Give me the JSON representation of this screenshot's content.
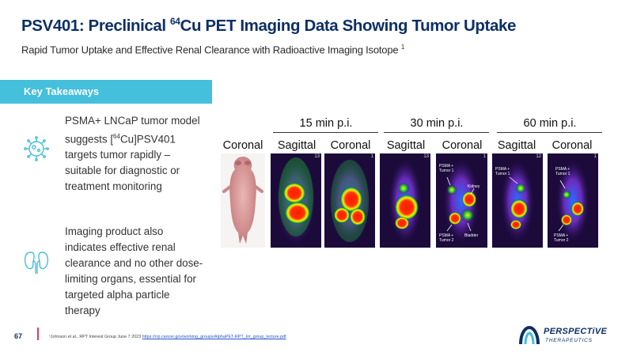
{
  "header": {
    "title_prefix": "PSV401: Preclinical ",
    "title_sup": "64",
    "title_suffix": "Cu PET Imaging Data Showing Tumor Uptake",
    "subtitle": "Rapid Tumor Uptake and Effective Renal Clearance with Radioactive Imaging Isotope",
    "subtitle_sup": "1"
  },
  "takeaways": {
    "heading": "Key Takeaways",
    "item1": {
      "line1": "PSMA+ LNCaP tumor model suggests [",
      "sup": "64",
      "line2": "Cu]PSV401 targets tumor rapidly – suitable for diagnostic or treatment monitoring",
      "icon": "cell-icon"
    },
    "item2": {
      "text": "Imaging product also indicates effective renal clearance and no other dose-limiting organs, essential for targeted alpha particle therapy",
      "icon": "kidneys-icon"
    }
  },
  "figure": {
    "groups": [
      "15 min p.i.",
      "30 min p.i.",
      "60 min p.i."
    ],
    "columns": [
      "Coronal",
      "Sagittal",
      "Coronal",
      "Sagittal",
      "Coronal",
      "Sagittal",
      "Coronal"
    ],
    "panel_numbers": [
      "13",
      "1",
      "13",
      "1",
      "12",
      "1"
    ],
    "annotations": {
      "psma_tumor1": "PSMA + Tumor 1",
      "psma_tumor2": "PSMA + Tumor 2",
      "kidney": "Kidney",
      "bladder": "Bladder"
    }
  },
  "footer": {
    "page_number": "67",
    "reference_prefix": "¹Johnson et al., RPT Interest Group June 7 2023 ",
    "reference_link": "https://rrp.cancer.gov/working_groups/AlphaPET-RPT_Int_group_lecture.pdf"
  },
  "logo": {
    "name": "PERSPECTiVE",
    "subtitle": "THERAPEUTICS"
  },
  "colors": {
    "title": "#0d2f66",
    "takeaway_bar": "#44bfdc",
    "accent": "#e03a6a"
  }
}
